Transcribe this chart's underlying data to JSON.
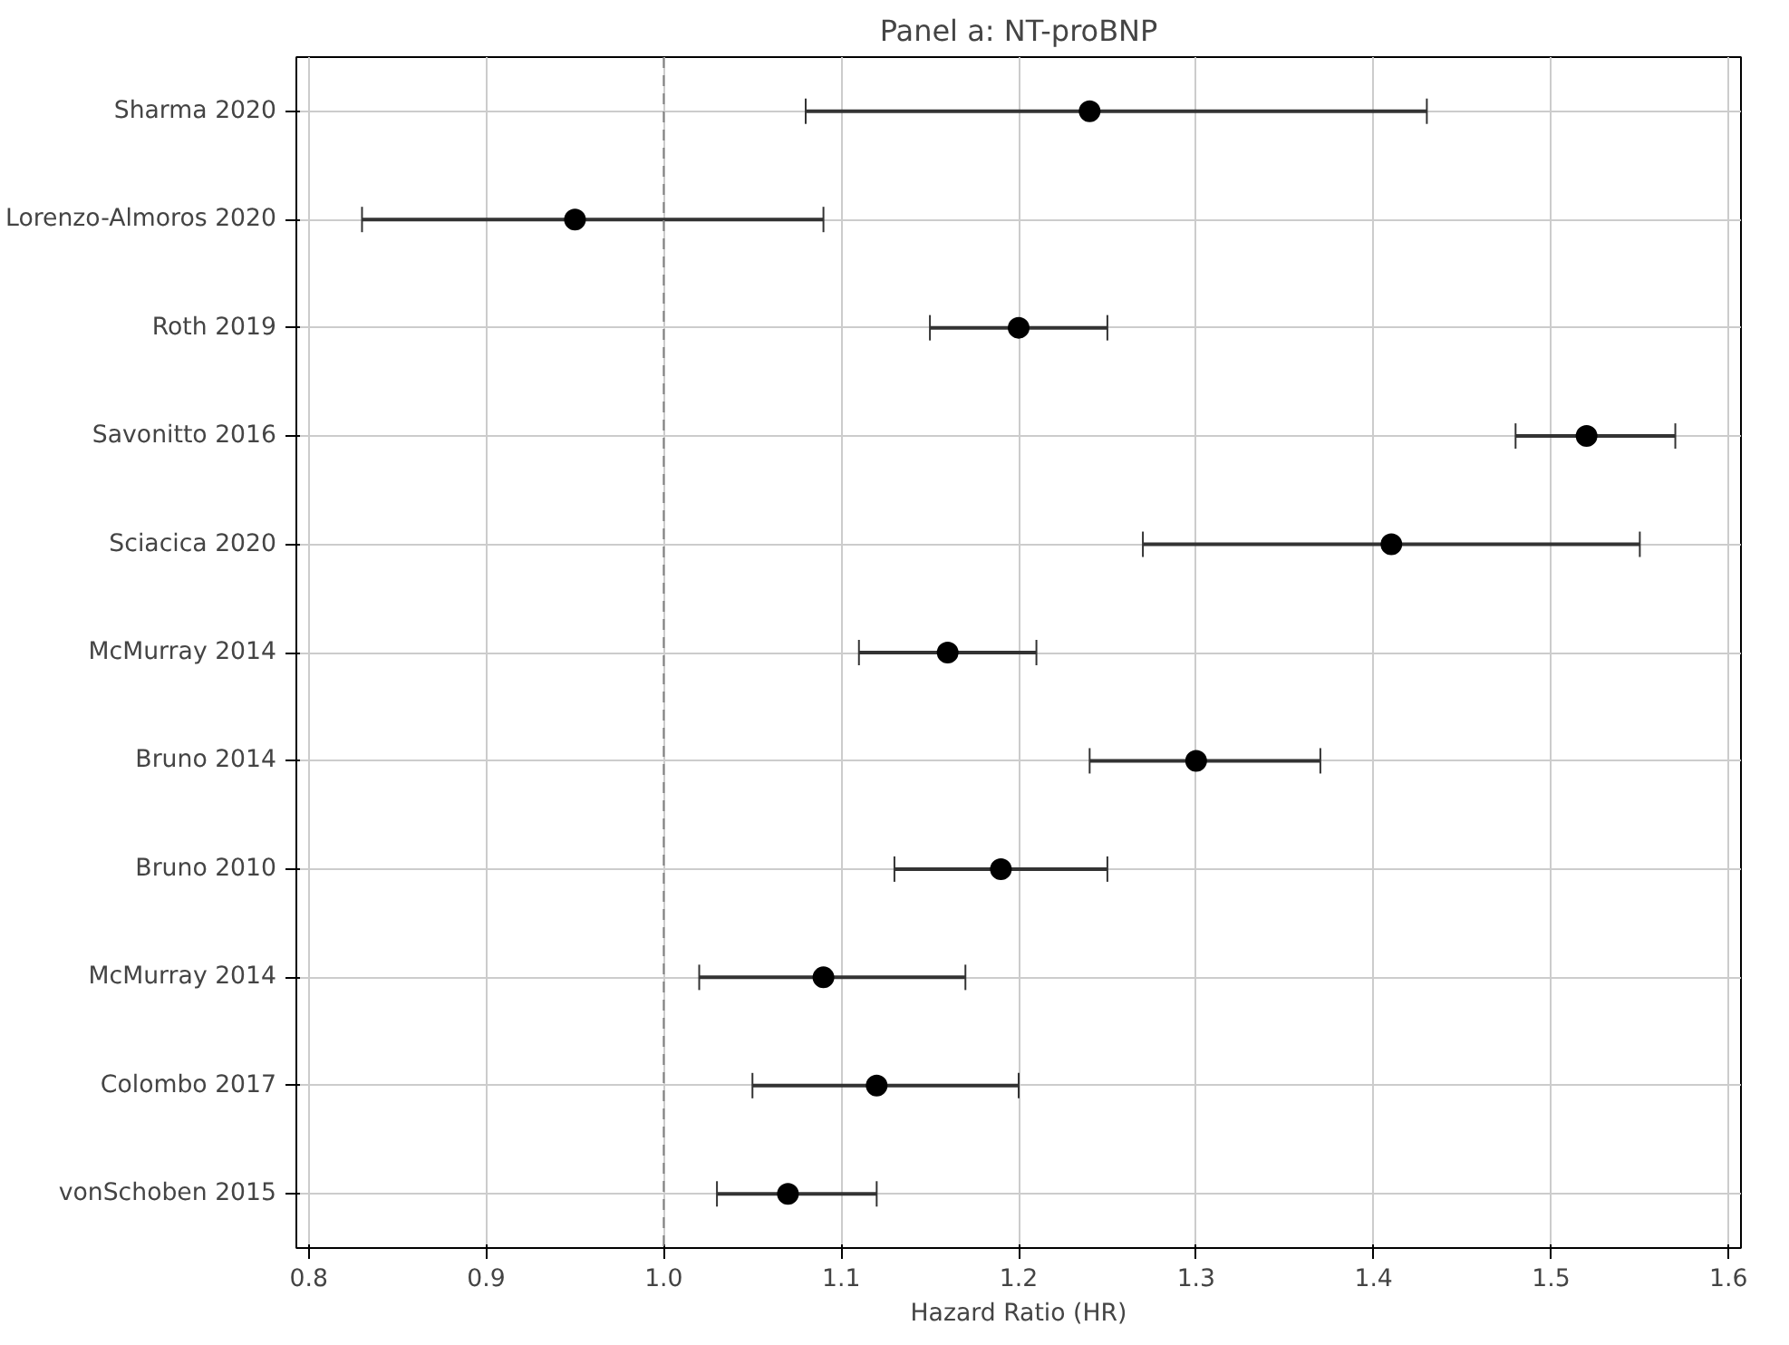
{
  "chart_data": {
    "type": "scatter",
    "orientation": "horizontal",
    "title": "Panel a: NT-proBNP",
    "xlabel": "Hazard Ratio (HR)",
    "categories": [
      "Sharma 2020",
      "Lorenzo-Almoros 2020",
      "Roth 2019",
      "Savonitto 2016",
      "Sciacica 2020",
      "McMurray 2014",
      "Bruno 2014",
      "Bruno 2010",
      "McMurray 2014",
      "Colombo 2017",
      "vonSchoben 2015"
    ],
    "series": [
      {
        "color": "#000000",
        "values": [
          1.24,
          0.95,
          1.2,
          1.52,
          1.41,
          1.16,
          1.3,
          1.19,
          1.09,
          1.12,
          1.07
        ],
        "errors": [
          [
            1.08,
            1.43
          ],
          [
            0.83,
            1.09
          ],
          [
            1.15,
            1.25
          ],
          [
            1.48,
            1.57
          ],
          [
            1.27,
            1.55
          ],
          [
            1.11,
            1.21
          ],
          [
            1.24,
            1.37
          ],
          [
            1.13,
            1.25
          ],
          [
            1.02,
            1.17
          ],
          [
            1.05,
            1.2
          ],
          [
            1.03,
            1.12
          ]
        ]
      }
    ],
    "xlim": [
      0.793,
      1.607
    ],
    "xticks": [
      0.8,
      0.9,
      {
        "value": 1,
        "label": "1.0"
      },
      1.1,
      1.2,
      1.3,
      1.4,
      1.5,
      1.6
    ],
    "ref_lines": [
      {
        "axis": "x",
        "value": 1.0,
        "color": "#808080",
        "line_style": "dashed"
      }
    ],
    "grid": true,
    "marker": "circle"
  }
}
